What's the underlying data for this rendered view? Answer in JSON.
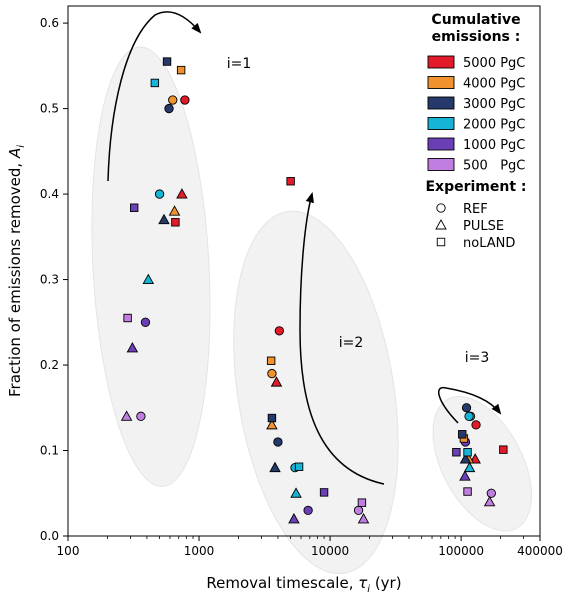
{
  "chart_data": {
    "type": "scatter",
    "xlabel": "Removal timescale, τ",
    "xlabel_sub": "i",
    "xlabel_unit": " (yr)",
    "ylabel": "Fraction of emissions removed, A",
    "ylabel_sub": "i",
    "x_scale": "log",
    "xlim": [
      100,
      400000
    ],
    "ylim": [
      0,
      0.62
    ],
    "x_ticks": [
      100,
      1000,
      10000,
      100000,
      400000
    ],
    "x_tick_labels": [
      "100",
      "1000",
      "10000",
      "100000",
      "400000"
    ],
    "y_ticks": [
      0.0,
      0.1,
      0.2,
      0.3,
      0.4,
      0.5,
      0.6
    ],
    "y_tick_labels": [
      "0.0",
      "0.1",
      "0.2",
      "0.3",
      "0.4",
      "0.5",
      "0.6"
    ],
    "grid": false,
    "legend_position": "top-right",
    "legend": {
      "title_line1": "Cumulative",
      "title_line2": "emissions :",
      "colors": [
        {
          "label": "5000 PgC",
          "color": "#e31a2a"
        },
        {
          "label": "4000 PgC",
          "color": "#f0922d"
        },
        {
          "label": "3000 PgC",
          "color": "#253a6b"
        },
        {
          "label": "2000 PgC",
          "color": "#16b4d6"
        },
        {
          "label": "1000 PgC",
          "color": "#6b3fb5"
        },
        {
          "label": "500   PgC",
          "color": "#c07ee0"
        }
      ],
      "experiment_title": "Experiment :",
      "experiments": [
        {
          "label": "REF",
          "marker": "circle"
        },
        {
          "label": "PULSE",
          "marker": "triangle"
        },
        {
          "label": "noLAND",
          "marker": "square"
        }
      ]
    },
    "annotations": [
      "i=1",
      "i=2",
      "i=3"
    ],
    "points": [
      {
        "group": "i=1",
        "emission": 5000,
        "experiment": "REF",
        "x": 780,
        "y": 0.51
      },
      {
        "group": "i=1",
        "emission": 4000,
        "experiment": "REF",
        "x": 630,
        "y": 0.51
      },
      {
        "group": "i=1",
        "emission": 3000,
        "experiment": "REF",
        "x": 590,
        "y": 0.5
      },
      {
        "group": "i=1",
        "emission": 2000,
        "experiment": "REF",
        "x": 500,
        "y": 0.4
      },
      {
        "group": "i=1",
        "emission": 1000,
        "experiment": "REF",
        "x": 390,
        "y": 0.25
      },
      {
        "group": "i=1",
        "emission": 500,
        "experiment": "REF",
        "x": 360,
        "y": 0.14
      },
      {
        "group": "i=1",
        "emission": 5000,
        "experiment": "PULSE",
        "x": 740,
        "y": 0.4
      },
      {
        "group": "i=1",
        "emission": 4000,
        "experiment": "PULSE",
        "x": 650,
        "y": 0.38
      },
      {
        "group": "i=1",
        "emission": 3000,
        "experiment": "PULSE",
        "x": 540,
        "y": 0.37
      },
      {
        "group": "i=1",
        "emission": 2000,
        "experiment": "PULSE",
        "x": 410,
        "y": 0.3
      },
      {
        "group": "i=1",
        "emission": 1000,
        "experiment": "PULSE",
        "x": 310,
        "y": 0.22
      },
      {
        "group": "i=1",
        "emission": 500,
        "experiment": "PULSE",
        "x": 280,
        "y": 0.14
      },
      {
        "group": "i=1",
        "emission": 5000,
        "experiment": "noLAND",
        "x": 660,
        "y": 0.367
      },
      {
        "group": "i=1",
        "emission": 4000,
        "experiment": "noLAND",
        "x": 730,
        "y": 0.545
      },
      {
        "group": "i=1",
        "emission": 3000,
        "experiment": "noLAND",
        "x": 570,
        "y": 0.555
      },
      {
        "group": "i=1",
        "emission": 2000,
        "experiment": "noLAND",
        "x": 460,
        "y": 0.53
      },
      {
        "group": "i=1",
        "emission": 1000,
        "experiment": "noLAND",
        "x": 320,
        "y": 0.384
      },
      {
        "group": "i=1",
        "emission": 500,
        "experiment": "noLAND",
        "x": 285,
        "y": 0.255
      },
      {
        "group": "i=2",
        "emission": 5000,
        "experiment": "REF",
        "x": 4100,
        "y": 0.24
      },
      {
        "group": "i=2",
        "emission": 4000,
        "experiment": "REF",
        "x": 3600,
        "y": 0.19
      },
      {
        "group": "i=2",
        "emission": 3000,
        "experiment": "REF",
        "x": 4000,
        "y": 0.11
      },
      {
        "group": "i=2",
        "emission": 2000,
        "experiment": "REF",
        "x": 5400,
        "y": 0.08
      },
      {
        "group": "i=2",
        "emission": 1000,
        "experiment": "REF",
        "x": 6800,
        "y": 0.03
      },
      {
        "group": "i=2",
        "emission": 500,
        "experiment": "REF",
        "x": 16500,
        "y": 0.03
      },
      {
        "group": "i=2",
        "emission": 5000,
        "experiment": "PULSE",
        "x": 3900,
        "y": 0.18
      },
      {
        "group": "i=2",
        "emission": 4000,
        "experiment": "PULSE",
        "x": 3600,
        "y": 0.13
      },
      {
        "group": "i=2",
        "emission": 3000,
        "experiment": "PULSE",
        "x": 3800,
        "y": 0.08
      },
      {
        "group": "i=2",
        "emission": 2000,
        "experiment": "PULSE",
        "x": 5500,
        "y": 0.05
      },
      {
        "group": "i=2",
        "emission": 1000,
        "experiment": "PULSE",
        "x": 5300,
        "y": 0.02
      },
      {
        "group": "i=2",
        "emission": 500,
        "experiment": "PULSE",
        "x": 18000,
        "y": 0.02
      },
      {
        "group": "i=2",
        "emission": 5000,
        "experiment": "noLAND",
        "x": 5000,
        "y": 0.415
      },
      {
        "group": "i=2",
        "emission": 4000,
        "experiment": "noLAND",
        "x": 3550,
        "y": 0.205
      },
      {
        "group": "i=2",
        "emission": 3000,
        "experiment": "noLAND",
        "x": 3600,
        "y": 0.138
      },
      {
        "group": "i=2",
        "emission": 2000,
        "experiment": "noLAND",
        "x": 5800,
        "y": 0.081
      },
      {
        "group": "i=2",
        "emission": 1000,
        "experiment": "noLAND",
        "x": 9000,
        "y": 0.051
      },
      {
        "group": "i=2",
        "emission": 500,
        "experiment": "noLAND",
        "x": 17500,
        "y": 0.039
      },
      {
        "group": "i=3",
        "emission": 5000,
        "experiment": "REF",
        "x": 130000,
        "y": 0.13
      },
      {
        "group": "i=3",
        "emission": 4000,
        "experiment": "REF",
        "x": 118000,
        "y": 0.14
      },
      {
        "group": "i=3",
        "emission": 3000,
        "experiment": "REF",
        "x": 110000,
        "y": 0.15
      },
      {
        "group": "i=3",
        "emission": 2000,
        "experiment": "REF",
        "x": 115000,
        "y": 0.14
      },
      {
        "group": "i=3",
        "emission": 1000,
        "experiment": "REF",
        "x": 108000,
        "y": 0.11
      },
      {
        "group": "i=3",
        "emission": 500,
        "experiment": "REF",
        "x": 170000,
        "y": 0.05
      },
      {
        "group": "i=3",
        "emission": 5000,
        "experiment": "PULSE",
        "x": 128000,
        "y": 0.09
      },
      {
        "group": "i=3",
        "emission": 4000,
        "experiment": "PULSE",
        "x": 114000,
        "y": 0.09
      },
      {
        "group": "i=3",
        "emission": 3000,
        "experiment": "PULSE",
        "x": 108000,
        "y": 0.09
      },
      {
        "group": "i=3",
        "emission": 2000,
        "experiment": "PULSE",
        "x": 116000,
        "y": 0.08
      },
      {
        "group": "i=3",
        "emission": 1000,
        "experiment": "PULSE",
        "x": 107000,
        "y": 0.07
      },
      {
        "group": "i=3",
        "emission": 500,
        "experiment": "PULSE",
        "x": 165000,
        "y": 0.04
      },
      {
        "group": "i=3",
        "emission": 5000,
        "experiment": "noLAND",
        "x": 210000,
        "y": 0.101
      },
      {
        "group": "i=3",
        "emission": 4000,
        "experiment": "noLAND",
        "x": 105000,
        "y": 0.114
      },
      {
        "group": "i=3",
        "emission": 3000,
        "experiment": "noLAND",
        "x": 102000,
        "y": 0.119
      },
      {
        "group": "i=3",
        "emission": 2000,
        "experiment": "noLAND",
        "x": 112000,
        "y": 0.098
      },
      {
        "group": "i=3",
        "emission": 1000,
        "experiment": "noLAND",
        "x": 92000,
        "y": 0.098
      },
      {
        "group": "i=3",
        "emission": 500,
        "experiment": "noLAND",
        "x": 112000,
        "y": 0.052
      }
    ]
  }
}
